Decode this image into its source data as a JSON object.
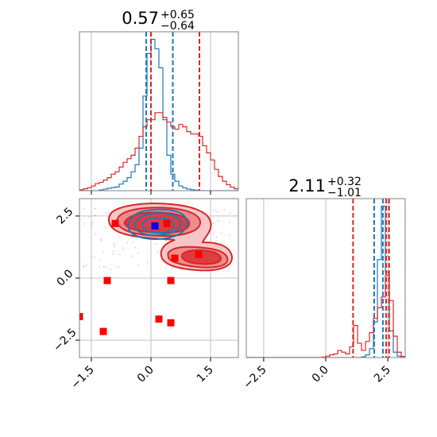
{
  "chart_data": [
    {
      "panel": "marginal-param-1",
      "type": "step-histogram",
      "title": {
        "value": "0.57",
        "plus": "+0.65",
        "minus": "−0.64"
      },
      "xlim": [
        -1.8,
        2.2
      ],
      "grid": true,
      "bin_edges": [
        -1.8,
        -1.7,
        -1.6,
        -1.5,
        -1.4,
        -1.3,
        -1.2,
        -1.1,
        -1.0,
        -0.9,
        -0.8,
        -0.7,
        -0.6,
        -0.5,
        -0.4,
        -0.3,
        -0.2,
        -0.1,
        0.0,
        0.1,
        0.2,
        0.3,
        0.4,
        0.5,
        0.6,
        0.7,
        0.8,
        0.9,
        1.0,
        1.1,
        1.2,
        1.3,
        1.4,
        1.5,
        1.6,
        1.7,
        1.8,
        1.9,
        2.0,
        2.1,
        2.2
      ],
      "series": [
        {
          "color": "#1f77b4",
          "counts": [
            0,
            0,
            0,
            0,
            0,
            0.3,
            0.6,
            1.0,
            1.3,
            1.6,
            2.8,
            4.0,
            5.5,
            8.0,
            11.0,
            18.0,
            40.0,
            58.0,
            64.0,
            60.0,
            52.0,
            30.0,
            15.0,
            7.0,
            4.0,
            2.0,
            1.2,
            0.7,
            0.4,
            0.2,
            0,
            0,
            0,
            0,
            0,
            0,
            0,
            0,
            0,
            0
          ],
          "quantile_lines": [
            -0.12,
            0.0,
            0.55
          ]
        },
        {
          "color": "#d62728",
          "counts": [
            0.4,
            0.8,
            1.2,
            2.0,
            3.0,
            3.5,
            4.5,
            5.5,
            7.0,
            8.0,
            10.0,
            12.0,
            13.5,
            15.0,
            18.0,
            23.0,
            27.0,
            30.0,
            30.0,
            33.0,
            33.0,
            31.0,
            29.0,
            27.0,
            26.0,
            28.0,
            27.0,
            25.0,
            24.0,
            24.0,
            23.0,
            19.0,
            16.0,
            13.0,
            9.0,
            6.0,
            4.0,
            2.5,
            1.5,
            0.8
          ],
          "quantile_lines": [
            0.0,
            1.22
          ]
        }
      ]
    },
    {
      "panel": "joint-param-1-param-2",
      "type": "contour-scatter",
      "xlim": [
        -1.8,
        2.2
      ],
      "ylim": [
        -3.2,
        3.2
      ],
      "xticks": [
        "−1.5",
        "0.0",
        "1.5"
      ],
      "xtick_values": [
        -1.5,
        0.0,
        1.5
      ],
      "yticks": [
        "2.5",
        "0.0",
        "−2.5"
      ],
      "ytick_values": [
        2.5,
        0.0,
        -2.5
      ],
      "grid": true,
      "red_markers": [
        [
          -0.9,
          2.2
        ],
        [
          0.4,
          2.2
        ],
        [
          0.6,
          0.8
        ],
        [
          1.2,
          0.95
        ],
        [
          -1.1,
          -0.1
        ],
        [
          0.5,
          -0.1
        ],
        [
          -1.8,
          -1.55
        ],
        [
          -1.2,
          -2.15
        ],
        [
          0.2,
          -1.65
        ],
        [
          0.5,
          -1.8
        ]
      ],
      "blue_markers": [
        [
          0.1,
          2.1
        ]
      ]
    },
    {
      "panel": "marginal-param-2",
      "type": "step-histogram",
      "title": {
        "value": "2.11",
        "plus": "+0.32",
        "minus": "−1.01"
      },
      "xlim": [
        -3.2,
        3.2
      ],
      "xticks": [
        "−2.5",
        "0.0",
        "2.5"
      ],
      "xtick_values": [
        -2.5,
        0.0,
        2.5
      ],
      "grid": true,
      "bin_edges": [
        -3.2,
        -3.04,
        -2.88,
        -2.72,
        -2.56,
        -2.4,
        -2.24,
        -2.08,
        -1.92,
        -1.76,
        -1.6,
        -1.44,
        -1.28,
        -1.12,
        -0.96,
        -0.8,
        -0.64,
        -0.48,
        -0.32,
        -0.16,
        0.0,
        0.16,
        0.32,
        0.48,
        0.64,
        0.8,
        0.96,
        1.12,
        1.28,
        1.44,
        1.6,
        1.76,
        1.92,
        2.08,
        2.24,
        2.4,
        2.56,
        2.72,
        2.88,
        3.04,
        3.2
      ],
      "series": [
        {
          "color": "#1f77b4",
          "counts": [
            0,
            0,
            0,
            0,
            0,
            0,
            0,
            0,
            0,
            0,
            0,
            0,
            0,
            0,
            0,
            0,
            0,
            0,
            0,
            0,
            0,
            0,
            0,
            0,
            0,
            0,
            0,
            0,
            0,
            0.4,
            1.5,
            5,
            20,
            55,
            85,
            48,
            15,
            3,
            0.8,
            0
          ],
          "quantile_lines": [
            1.95,
            2.3
          ]
        },
        {
          "color": "#d62728",
          "counts": [
            0,
            0,
            0,
            0,
            0,
            0,
            0,
            0,
            0,
            0,
            0,
            0,
            0,
            0,
            0,
            0,
            0,
            0,
            0,
            0.3,
            0.8,
            1.5,
            2,
            4,
            3,
            2,
            6,
            18,
            8,
            4,
            9,
            14,
            22,
            28,
            34,
            46,
            32,
            12,
            3,
            0.6
          ],
          "quantile_lines": [
            1.1,
            2.43,
            2.55
          ]
        }
      ]
    }
  ]
}
